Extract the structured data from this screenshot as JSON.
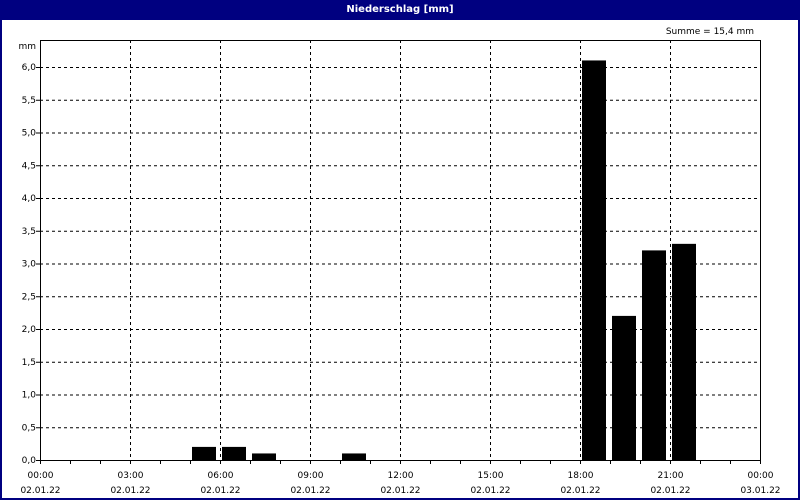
{
  "window": {
    "title": "Niederschlag [mm]"
  },
  "chart_data": {
    "type": "bar",
    "title": "Niederschlag [mm]",
    "annotation": "Summe = 15,4 mm",
    "ylabel": "mm",
    "ylim": [
      0,
      6.4
    ],
    "yticks": [
      "0,0",
      "0,5",
      "1,0",
      "1,5",
      "2,0",
      "2,5",
      "3,0",
      "3,5",
      "4,0",
      "4,5",
      "5,0",
      "5,5",
      "6,0"
    ],
    "xlim_hours": [
      0,
      24
    ],
    "xticks": [
      {
        "time": "00:00",
        "date": "02.01.22"
      },
      {
        "time": "03:00",
        "date": "02.01.22"
      },
      {
        "time": "06:00",
        "date": "02.01.22"
      },
      {
        "time": "09:00",
        "date": "02.01.22"
      },
      {
        "time": "12:00",
        "date": "02.01.22"
      },
      {
        "time": "15:00",
        "date": "02.01.22"
      },
      {
        "time": "18:00",
        "date": "02.01.22"
      },
      {
        "time": "21:00",
        "date": "02.01.22"
      },
      {
        "time": "00:00",
        "date": "03.01.22"
      }
    ],
    "bars": [
      {
        "hour_start": 5,
        "value": 0.2
      },
      {
        "hour_start": 6,
        "value": 0.2
      },
      {
        "hour_start": 7,
        "value": 0.1
      },
      {
        "hour_start": 10,
        "value": 0.1
      },
      {
        "hour_start": 18,
        "value": 6.1
      },
      {
        "hour_start": 19,
        "value": 2.2
      },
      {
        "hour_start": 20,
        "value": 3.2
      },
      {
        "hour_start": 21,
        "value": 3.3
      }
    ],
    "grid": true,
    "bar_color": "#000000",
    "frame_color": "#000080"
  }
}
